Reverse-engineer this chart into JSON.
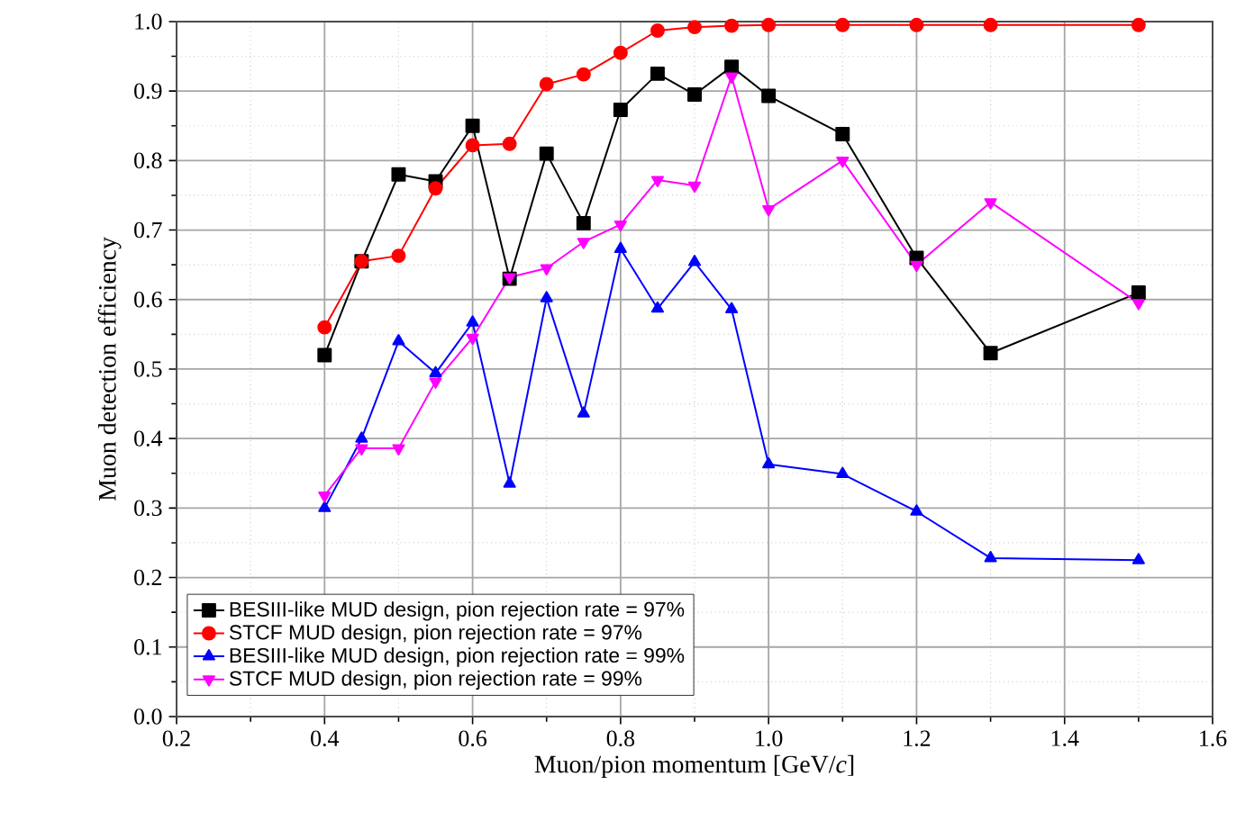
{
  "chart_data": {
    "type": "line",
    "xlabel": "Muon/pion momentum [GeV/*c*]",
    "ylabel": "Muon detection efficiency",
    "x": [
      0.4,
      0.45,
      0.5,
      0.55,
      0.6,
      0.65,
      0.7,
      0.75,
      0.8,
      0.85,
      0.9,
      0.95,
      1.0,
      1.1,
      1.2,
      1.3,
      1.5
    ],
    "series": [
      {
        "name": "BESIII-like MUD design, pion rejection rate = 97%",
        "color": "#000000",
        "marker": "square",
        "values": [
          0.52,
          0.655,
          0.78,
          0.77,
          0.85,
          0.63,
          0.81,
          0.71,
          0.873,
          0.925,
          0.895,
          0.935,
          0.893,
          0.838,
          0.66,
          0.523,
          0.61
        ]
      },
      {
        "name": "STCF MUD design, pion rejection rate = 97%",
        "color": "#ff0000",
        "marker": "circle",
        "values": [
          0.56,
          0.655,
          0.663,
          0.76,
          0.822,
          0.824,
          0.91,
          0.924,
          0.955,
          0.987,
          0.992,
          0.994,
          0.995,
          0.995,
          0.995,
          0.995,
          0.995
        ]
      },
      {
        "name": "BESIII-like MUD design, pion rejection rate = 99%",
        "color": "#0000ff",
        "marker": "triangle",
        "values": [
          0.3,
          0.4,
          0.54,
          0.494,
          0.567,
          0.335,
          0.602,
          0.436,
          0.673,
          0.587,
          0.654,
          0.586,
          0.363,
          0.349,
          0.295,
          0.228,
          0.225
        ]
      },
      {
        "name": "STCF MUD design, pion rejection rate = 99%",
        "color": "#ff00ff",
        "marker": "triangle down",
        "values": [
          0.318,
          0.386,
          0.386,
          0.482,
          0.545,
          0.632,
          0.645,
          0.683,
          0.708,
          0.772,
          0.764,
          0.921,
          0.73,
          0.8,
          0.65,
          0.74,
          0.595
        ]
      }
    ],
    "xlim": [
      0.2,
      1.6
    ],
    "xticks": [
      0.2,
      0.4,
      0.6,
      0.8,
      {
        "value": 1,
        "label": "1.0"
      },
      1.2,
      1.4,
      1.6
    ],
    "ylim": [
      0,
      1
    ],
    "yticks": [
      {
        "value": 0,
        "label": "0.0"
      },
      0.1,
      0.2,
      0.3,
      0.4,
      0.5,
      0.6,
      0.7,
      0.8,
      0.9,
      {
        "value": 1,
        "label": "1.0"
      }
    ],
    "grid": true,
    "legend": "bottom left",
    "line_style": "solid"
  }
}
